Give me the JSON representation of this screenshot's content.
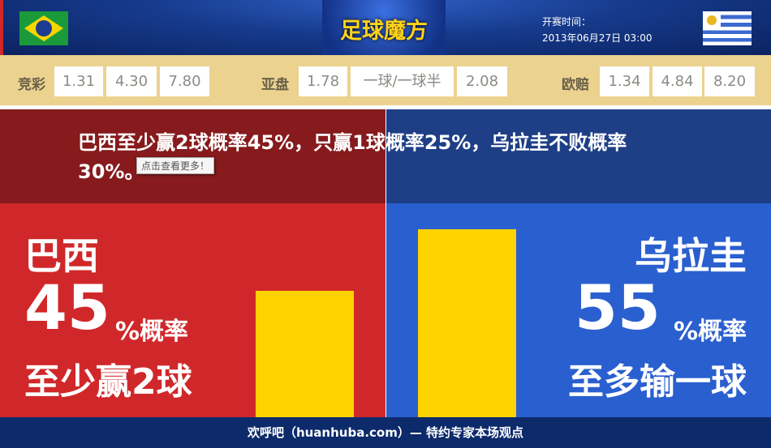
{
  "header": {
    "logo": "足球魔方",
    "time_label": "开赛时间：",
    "time_value": "2013年06月27日 03:00",
    "home_flag": "brazil-flag",
    "away_flag": "uruguay-flag"
  },
  "odds": {
    "jingcai": {
      "label": "竞彩",
      "values": [
        "1.31",
        "4.30",
        "7.80"
      ]
    },
    "yapan": {
      "label": "亚盘",
      "values": [
        "1.78",
        "一球/一球半",
        "2.08"
      ]
    },
    "oupei": {
      "label": "欧赔",
      "values": [
        "1.34",
        "4.84",
        "8.20"
      ]
    }
  },
  "headline": {
    "text": "巴西至少赢2球概率45%，只赢1球概率25%，乌拉圭不败概率30%。",
    "tooltip": "点击查看更多！"
  },
  "home": {
    "team": "巴西",
    "percent": "45",
    "percent_suffix": "%概率",
    "outcome": "至少赢2球",
    "probability": 45,
    "color": "#d0282a"
  },
  "away": {
    "team": "乌拉圭",
    "percent": "55",
    "percent_suffix": "%概率",
    "outcome": "至多输一球",
    "probability": 55,
    "color": "#2a5fcf"
  },
  "bar_color": "#ffd300",
  "footer": {
    "text": "欢呼吧（huanhuba.com）— 特约专家本场观点"
  }
}
